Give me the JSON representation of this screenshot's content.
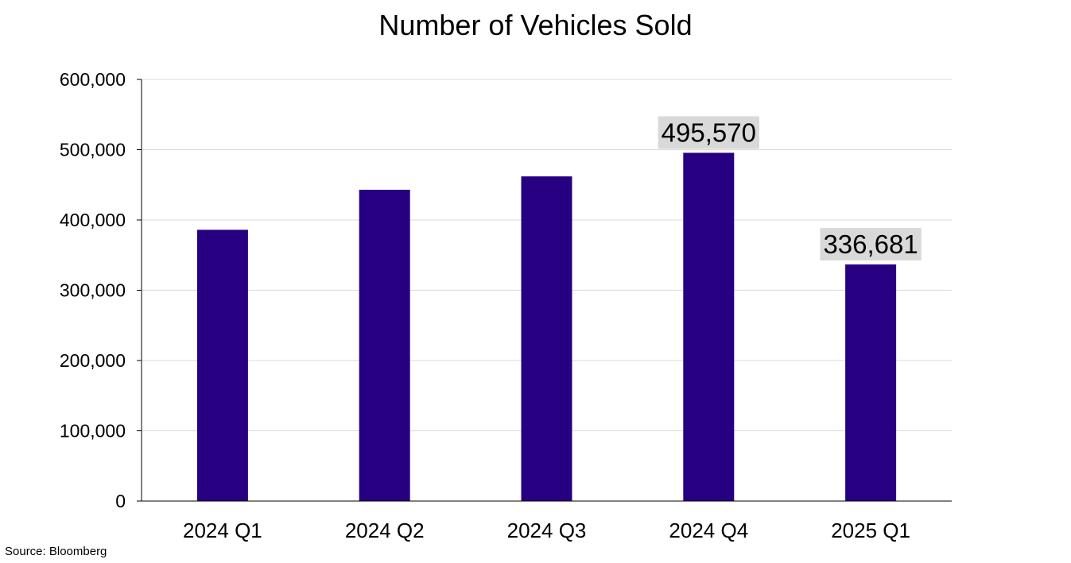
{
  "chart_data": {
    "type": "bar",
    "title": "Number of Vehicles Sold",
    "categories": [
      "2024 Q1",
      "2024 Q2",
      "2024 Q3",
      "2024 Q4",
      "2025 Q1"
    ],
    "values": [
      386000,
      443000,
      462000,
      495570,
      336681
    ],
    "data_labels": [
      "",
      "",
      "",
      "495,570",
      "336,681"
    ],
    "ylim": [
      0,
      600000
    ],
    "yticks": [
      0,
      100000,
      200000,
      300000,
      400000,
      500000,
      600000
    ],
    "ytick_labels": [
      "0",
      "100,000",
      "200,000",
      "300,000",
      "400,000",
      "500,000",
      "600,000"
    ],
    "xlabel": "",
    "ylabel": "",
    "grid": true,
    "legend": false,
    "colors": {
      "bar": "#270082",
      "grid": "#d9d9d9",
      "axis": "#000000",
      "label_background": "#d9d9d9"
    }
  },
  "source": "Source: Bloomberg"
}
